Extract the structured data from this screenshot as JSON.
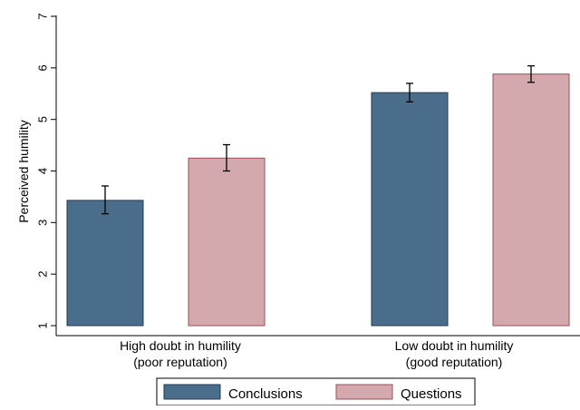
{
  "chart_data": {
    "type": "bar",
    "title": "",
    "xlabel": "",
    "ylabel": "Perceived humility",
    "ylim": [
      1,
      7
    ],
    "yticks": [
      1,
      2,
      3,
      4,
      5,
      6,
      7
    ],
    "grid": false,
    "legend_position": "bottom",
    "groups": [
      {
        "label_line1": "High doubt in humility",
        "label_line2": "(poor reputation)"
      },
      {
        "label_line1": "Low doubt in humility",
        "label_line2": "(good reputation)"
      }
    ],
    "series": [
      {
        "name": "Conclusions",
        "color": "#4a6d8c",
        "values": [
          3.43,
          5.52
        ],
        "error_low": [
          3.17,
          5.34
        ],
        "error_high": [
          3.71,
          5.7
        ]
      },
      {
        "name": "Questions",
        "color": "#d4a9ae",
        "values": [
          4.25,
          5.88
        ],
        "error_low": [
          4.0,
          5.72
        ],
        "error_high": [
          4.51,
          6.04
        ]
      }
    ]
  }
}
